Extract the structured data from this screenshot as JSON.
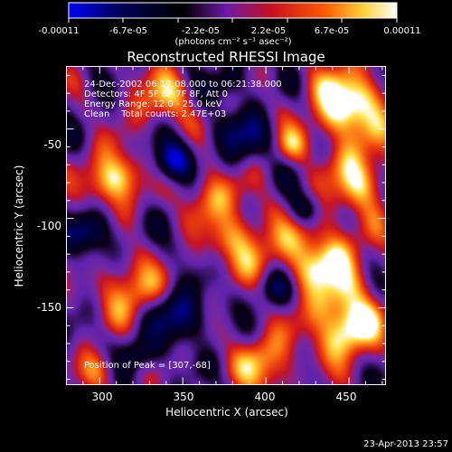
{
  "colorbar": {
    "min_label": "-0.00011",
    "tick_labels": [
      "-6.7e-05",
      "-2.2e-05",
      "2.2e-05",
      "6.7e-05"
    ],
    "max_label": "0.00011",
    "unit_label": "(photons cm⁻² s⁻¹ asec⁻²)",
    "colormap": [
      "#0000ff",
      "#000000",
      "#6a1aa6",
      "#c8101e",
      "#ff5a00",
      "#ffd23c",
      "#ffffff"
    ]
  },
  "title": "Reconstructed RHESSI Image",
  "info": {
    "line1": "24-Dec-2002 06:17:08.000 to 06:21:38.000",
    "line2": "Detectors: 4F 5F 6F 7F 8F, Att 0",
    "line3": "Energy Range: 12.0 - 25.0 keV",
    "line4": "Clean    Total counts: 2.47E+03"
  },
  "peak_label": "Position of Peak = [307,-68]",
  "axes": {
    "xlabel": "Heliocentric X (arcsec)",
    "ylabel": "Heliocentric Y (arcsec)",
    "xlim": [
      280,
      472
    ],
    "ylim": [
      -193,
      -15
    ],
    "x_ticks": [
      300,
      350,
      400,
      450
    ],
    "y_ticks": [
      -50,
      -100,
      -150
    ]
  },
  "timestamp": "23-Apr-2013 23:57"
}
